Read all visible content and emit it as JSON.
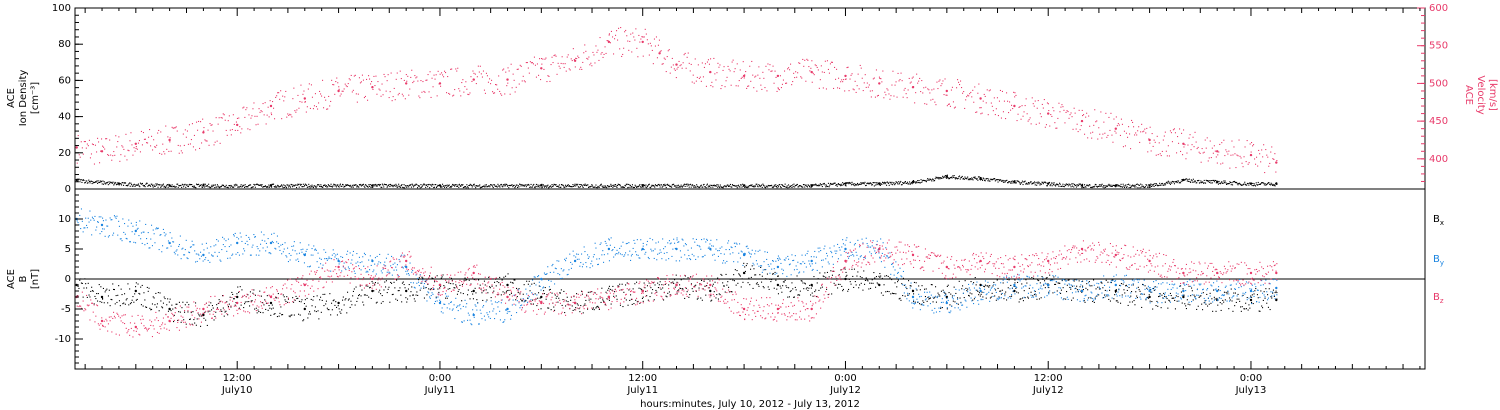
{
  "xaxis": {
    "title": "hours:minutes, July 10, 2012 - July 13, 2012",
    "ticks": [
      {
        "time": "12:00",
        "date": "July10",
        "hours": 12
      },
      {
        "time": "0:00",
        "date": "July11",
        "hours": 24
      },
      {
        "time": "12:00",
        "date": "July11",
        "hours": 36
      },
      {
        "time": "0:00",
        "date": "July12",
        "hours": 48
      },
      {
        "time": "12:00",
        "date": "July12",
        "hours": 60
      },
      {
        "time": "0:00",
        "date": "July13",
        "hours": 72
      }
    ]
  },
  "colors": {
    "black": "#000000",
    "blue": "#1a84e0",
    "pink": "#e83a6a"
  },
  "panels": {
    "top": {
      "left_label_lines": [
        "ACE",
        "Ion Density",
        "[cm⁻³]"
      ],
      "right_label_lines": [
        "ACE",
        "Velocity",
        "[km/s]"
      ],
      "left_ticks": [
        "0",
        "20",
        "40",
        "60",
        "80",
        "100"
      ],
      "right_ticks": [
        "400",
        "450",
        "500",
        "550",
        "600"
      ]
    },
    "bottom": {
      "left_label_lines": [
        "ACE",
        "B",
        "[nT]"
      ],
      "left_ticks": [
        "-10",
        "-5",
        "0",
        "5",
        "10"
      ],
      "legend": [
        {
          "label": "B",
          "sub": "x",
          "color": "#000000"
        },
        {
          "label": "B",
          "sub": "y",
          "color": "#1a84e0"
        },
        {
          "label": "B",
          "sub": "z",
          "color": "#e83a6a"
        }
      ]
    }
  },
  "chart_data": [
    {
      "type": "scatter",
      "x_unit": "hours since 2012-07-10 00:00",
      "xlim": [
        2.4,
        82.3
      ],
      "left_ylim": [
        0,
        100
      ],
      "right_ylim": [
        360,
        600
      ],
      "series": [
        {
          "name": "Velocity",
          "axis": "right",
          "color": "#e83a6a",
          "points": [
            [
              2.5,
              415
            ],
            [
              4,
              410
            ],
            [
              6,
              420
            ],
            [
              8,
              425
            ],
            [
              10,
              435
            ],
            [
              12,
              445
            ],
            [
              14,
              470
            ],
            [
              16,
              480
            ],
            [
              18,
              490
            ],
            [
              20,
              495
            ],
            [
              22,
              500
            ],
            [
              24,
              500
            ],
            [
              26,
              505
            ],
            [
              28,
              505
            ],
            [
              30,
              520
            ],
            [
              32,
              530
            ],
            [
              34,
              555
            ],
            [
              36,
              555
            ],
            [
              37,
              540
            ],
            [
              38,
              525
            ],
            [
              40,
              515
            ],
            [
              42,
              510
            ],
            [
              44,
              510
            ],
            [
              46,
              515
            ],
            [
              48,
              510
            ],
            [
              50,
              500
            ],
            [
              52,
              495
            ],
            [
              54,
              490
            ],
            [
              56,
              480
            ],
            [
              58,
              470
            ],
            [
              60,
              460
            ],
            [
              62,
              450
            ],
            [
              64,
              440
            ],
            [
              66,
              425
            ],
            [
              68,
              420
            ],
            [
              70,
              410
            ],
            [
              72,
              405
            ],
            [
              73.5,
              395
            ]
          ]
        },
        {
          "name": "Ion Density",
          "axis": "left",
          "color": "#000000",
          "points": [
            [
              2.5,
              5
            ],
            [
              5,
              3
            ],
            [
              8,
              2
            ],
            [
              10,
              2
            ],
            [
              14,
              2
            ],
            [
              20,
              2
            ],
            [
              24,
              2
            ],
            [
              30,
              2
            ],
            [
              36,
              2
            ],
            [
              42,
              2
            ],
            [
              46,
              2
            ],
            [
              48,
              3
            ],
            [
              50,
              3
            ],
            [
              52,
              4
            ],
            [
              54,
              7
            ],
            [
              56,
              6
            ],
            [
              58,
              4
            ],
            [
              60,
              3
            ],
            [
              62,
              2
            ],
            [
              64,
              2
            ],
            [
              66,
              2
            ],
            [
              68,
              5
            ],
            [
              70,
              4
            ],
            [
              72,
              3
            ],
            [
              73.5,
              3
            ]
          ]
        }
      ]
    },
    {
      "type": "scatter",
      "x_unit": "hours since 2012-07-10 00:00",
      "xlim": [
        2.4,
        82.3
      ],
      "ylim": [
        -15,
        15
      ],
      "series": [
        {
          "name": "Bx",
          "color": "#000000",
          "points": [
            [
              2.5,
              -1
            ],
            [
              4,
              -3
            ],
            [
              6,
              -2
            ],
            [
              8,
              -5
            ],
            [
              10,
              -6
            ],
            [
              12,
              -3
            ],
            [
              14,
              -4
            ],
            [
              16,
              -5
            ],
            [
              18,
              -4
            ],
            [
              20,
              -2
            ],
            [
              22,
              -2
            ],
            [
              24,
              -1
            ],
            [
              26,
              -2
            ],
            [
              28,
              -1
            ],
            [
              30,
              -3
            ],
            [
              32,
              -4
            ],
            [
              34,
              -3
            ],
            [
              36,
              -2
            ],
            [
              38,
              -1
            ],
            [
              40,
              -2
            ],
            [
              42,
              1
            ],
            [
              44,
              -1
            ],
            [
              46,
              -1
            ],
            [
              48,
              0
            ],
            [
              50,
              -1
            ],
            [
              52,
              -2
            ],
            [
              54,
              -3
            ],
            [
              56,
              -1
            ],
            [
              58,
              -2
            ],
            [
              60,
              -1
            ],
            [
              62,
              -2
            ],
            [
              64,
              -2
            ],
            [
              66,
              -3
            ],
            [
              68,
              -3
            ],
            [
              70,
              -3.5
            ],
            [
              72,
              -3.5
            ],
            [
              73.5,
              -3.5
            ]
          ]
        },
        {
          "name": "By",
          "color": "#1a84e0",
          "points": [
            [
              2.5,
              10
            ],
            [
              4,
              9
            ],
            [
              6,
              8
            ],
            [
              8,
              6
            ],
            [
              10,
              4
            ],
            [
              12,
              6
            ],
            [
              14,
              6
            ],
            [
              16,
              4
            ],
            [
              18,
              3
            ],
            [
              20,
              3
            ],
            [
              22,
              2
            ],
            [
              24,
              -4
            ],
            [
              26,
              -6
            ],
            [
              28,
              -5
            ],
            [
              30,
              0
            ],
            [
              32,
              3
            ],
            [
              34,
              5
            ],
            [
              36,
              5
            ],
            [
              38,
              5
            ],
            [
              40,
              5
            ],
            [
              42,
              4
            ],
            [
              44,
              2
            ],
            [
              46,
              3
            ],
            [
              48,
              5
            ],
            [
              50,
              5
            ],
            [
              52,
              -3
            ],
            [
              54,
              -4
            ],
            [
              56,
              -2
            ],
            [
              58,
              -1
            ],
            [
              60,
              -1
            ],
            [
              62,
              -2
            ],
            [
              64,
              -1
            ],
            [
              66,
              -2
            ],
            [
              68,
              -2
            ],
            [
              70,
              -2
            ],
            [
              72,
              -2
            ],
            [
              73.5,
              -1.5
            ]
          ]
        },
        {
          "name": "Bz",
          "color": "#e83a6a",
          "points": [
            [
              2.5,
              -3
            ],
            [
              4,
              -7
            ],
            [
              6,
              -8
            ],
            [
              8,
              -7
            ],
            [
              10,
              -5
            ],
            [
              12,
              -4
            ],
            [
              14,
              -3
            ],
            [
              16,
              -1
            ],
            [
              18,
              2
            ],
            [
              20,
              0
            ],
            [
              22,
              3
            ],
            [
              24,
              -1
            ],
            [
              26,
              1
            ],
            [
              28,
              -3
            ],
            [
              30,
              -4
            ],
            [
              32,
              -4
            ],
            [
              34,
              -3
            ],
            [
              36,
              -2
            ],
            [
              38,
              -1
            ],
            [
              40,
              -1
            ],
            [
              42,
              -5
            ],
            [
              44,
              -5
            ],
            [
              46,
              -5
            ],
            [
              48,
              3
            ],
            [
              50,
              5
            ],
            [
              52,
              4
            ],
            [
              54,
              2
            ],
            [
              56,
              3
            ],
            [
              58,
              2
            ],
            [
              60,
              3
            ],
            [
              62,
              5
            ],
            [
              64,
              4
            ],
            [
              66,
              3
            ],
            [
              68,
              1
            ],
            [
              70,
              1
            ],
            [
              72,
              1
            ],
            [
              73.5,
              1
            ]
          ]
        }
      ]
    }
  ]
}
